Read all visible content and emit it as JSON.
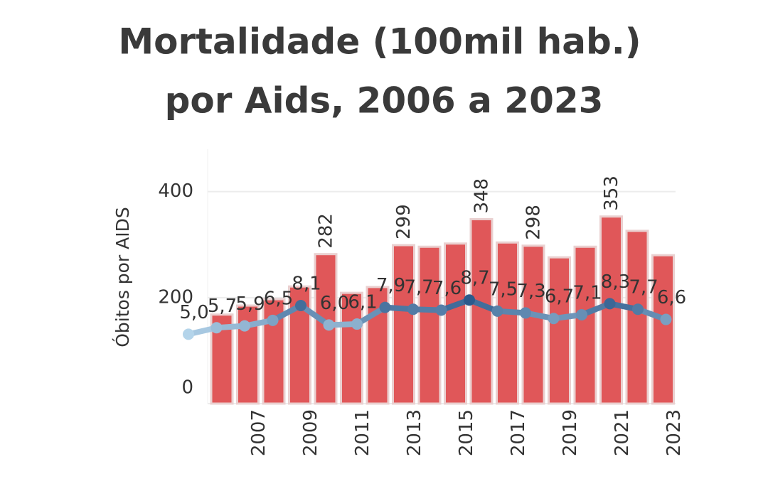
{
  "chart_data": {
    "type": "bar_line",
    "title_lines": [
      "Mortalidade (100mil hab.)",
      "por Aids, 2006 a 2023"
    ],
    "y_axis_label": "Óbitos por AIDS",
    "categories": [
      null,
      2007,
      null,
      2009,
      null,
      2011,
      null,
      2013,
      null,
      2015,
      null,
      2017,
      null,
      2019,
      null,
      2021,
      null,
      2023
    ],
    "ylim": [
      0,
      480
    ],
    "yticks": [
      0,
      200,
      400
    ],
    "y2lim": [
      -2.5,
      25
    ],
    "grid": true,
    "series": [
      {
        "name": "Óbitos por AIDS",
        "kind": "bar",
        "color": "#e05759",
        "values": [
          168,
          185,
          197,
          221,
          282,
          209,
          220,
          299,
          296,
          302,
          348,
          304,
          298,
          276,
          296,
          353,
          326,
          280
        ],
        "value_labels": [
          null,
          null,
          null,
          null,
          "282",
          null,
          null,
          "299",
          null,
          null,
          "348",
          null,
          "298",
          null,
          null,
          "353",
          null,
          null
        ]
      },
      {
        "name": "Mortalidade",
        "kind": "line",
        "axis": "y2",
        "color_low": "#b4d4ea",
        "color_high": "#2c5a8c",
        "values": [
          5.0,
          5.7,
          5.9,
          6.5,
          8.1,
          6.0,
          6.1,
          7.9,
          7.7,
          7.6,
          8.7,
          7.5,
          7.3,
          6.7,
          7.1,
          8.3,
          7.7,
          6.6
        ],
        "value_labels": [
          "5,0",
          "5,7",
          "5,9",
          "6,5",
          "8,1",
          "6,0",
          "6,1",
          "7,9",
          "7,7",
          "7,6",
          "8,7",
          "7,5",
          "7,3",
          "6,7",
          "7,1",
          "8,3",
          "7,7",
          "6,6"
        ]
      }
    ]
  }
}
